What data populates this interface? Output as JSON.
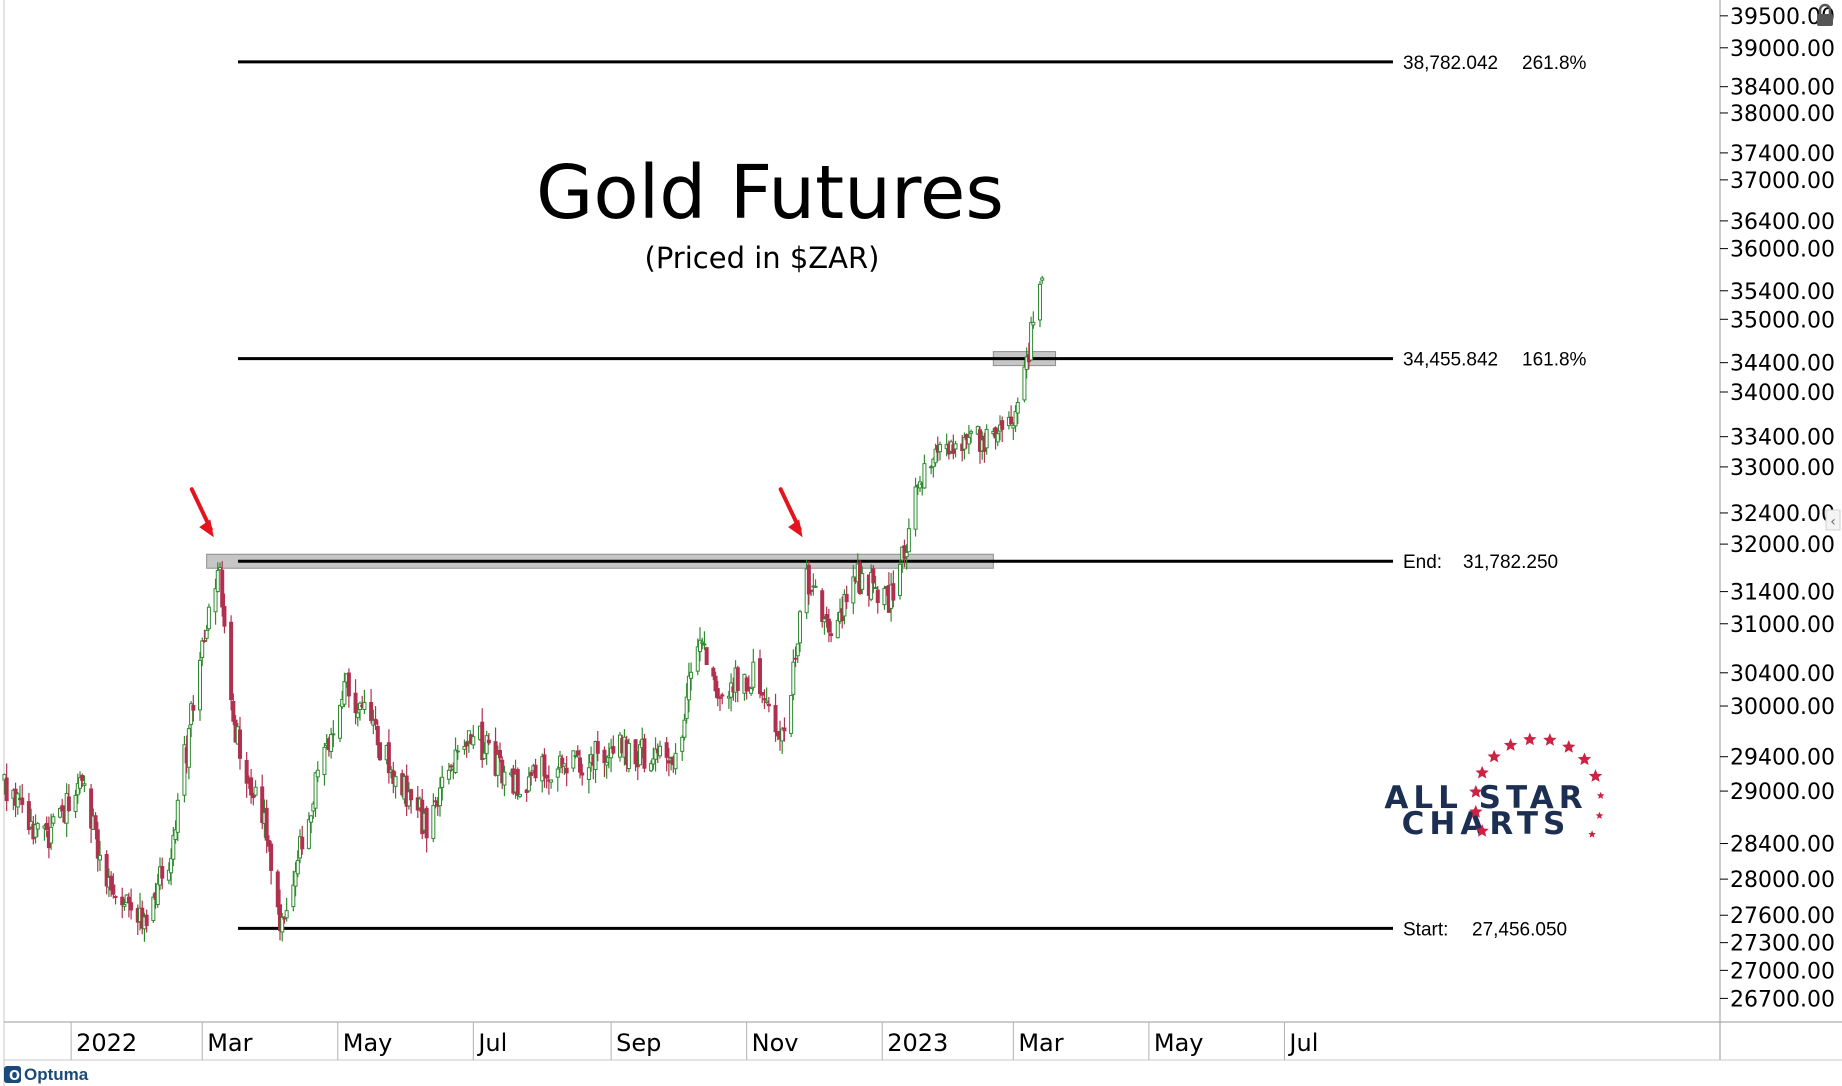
{
  "chart_data": {
    "type": "candlestick",
    "title": "Gold Futures",
    "subtitle": "(Priced in $ZAR)",
    "y_axis": {
      "ticks": [
        "39500.00",
        "39000.00",
        "38400.00",
        "38000.00",
        "37400.00",
        "37000.00",
        "36400.00",
        "36000.00",
        "35400.00",
        "35000.00",
        "34400.00",
        "34000.00",
        "33400.00",
        "33000.00",
        "32400.00",
        "32000.00",
        "31400.00",
        "31000.00",
        "30400.00",
        "30000.00",
        "29400.00",
        "29000.00",
        "28400.00",
        "28000.00",
        "27600.00",
        "27300.00",
        "27000.00",
        "26700.00"
      ],
      "range": [
        26450,
        39750
      ]
    },
    "x_axis": {
      "labels": [
        "2022",
        "Mar",
        "May",
        "Jul",
        "Sep",
        "Nov",
        "2023",
        "Mar",
        "May",
        "Jul"
      ]
    },
    "levels": [
      {
        "label": "",
        "value": 38782.042,
        "value_text": "38,782.042",
        "pct": "261.8%"
      },
      {
        "label": "",
        "value": 34455.842,
        "value_text": "34,455.842",
        "pct": "161.8%"
      },
      {
        "label": "End:",
        "value": 31782.25,
        "value_text": "31,782.250",
        "pct": ""
      },
      {
        "label": "Start:",
        "value": 27456.05,
        "value_text": "27,456.050",
        "pct": ""
      }
    ],
    "price_path": {
      "start_date": "2021-12-02",
      "end_date": "2023-03-14",
      "key_points": [
        [
          "2021-12-02",
          29100
        ],
        [
          "2021-12-20",
          28450
        ],
        [
          "2022-01-05",
          29100
        ],
        [
          "2022-01-18",
          28000
        ],
        [
          "2022-02-01",
          27500
        ],
        [
          "2022-02-14",
          28200
        ],
        [
          "2022-02-28",
          30500
        ],
        [
          "2022-03-08",
          31782
        ],
        [
          "2022-03-16",
          29700
        ],
        [
          "2022-03-31",
          28400
        ],
        [
          "2022-04-06",
          27456
        ],
        [
          "2022-04-20",
          29000
        ],
        [
          "2022-05-05",
          30300
        ],
        [
          "2022-05-20",
          29500
        ],
        [
          "2022-06-10",
          28600
        ],
        [
          "2022-06-30",
          29700
        ],
        [
          "2022-07-20",
          29100
        ],
        [
          "2022-08-10",
          29300
        ],
        [
          "2022-09-10",
          29500
        ],
        [
          "2022-10-01",
          29300
        ],
        [
          "2022-10-10",
          30900
        ],
        [
          "2022-10-20",
          30200
        ],
        [
          "2022-11-05",
          30400
        ],
        [
          "2022-11-18",
          29600
        ],
        [
          "2022-11-28",
          31600
        ],
        [
          "2022-12-08",
          30800
        ],
        [
          "2022-12-20",
          31600
        ],
        [
          "2023-01-05",
          31300
        ],
        [
          "2023-01-12",
          32000
        ],
        [
          "2023-01-20",
          33100
        ],
        [
          "2023-02-05",
          33400
        ],
        [
          "2023-02-20",
          33300
        ],
        [
          "2023-03-01",
          33700
        ],
        [
          "2023-03-08",
          34600
        ],
        [
          "2023-03-14",
          35600
        ]
      ]
    },
    "resistance_zones": [
      {
        "from": "2022-03-03",
        "to": "2023-02-20",
        "value": 31782.25
      },
      {
        "from": "2023-02-20",
        "to": "2023-03-20",
        "value": 34455.842
      }
    ],
    "arrows_at": [
      {
        "date": "2022-03-08",
        "value": 31782.25
      },
      {
        "date": "2022-11-28",
        "value": 31782.25
      }
    ],
    "colors": {
      "up": "#2e8b2e",
      "down": "#b03050",
      "levels": "#000000",
      "zone": "#bcbcbc",
      "arrow": "#e3141e"
    }
  },
  "branding": {
    "line1": "ALL STAR",
    "line2": "CHARTS",
    "star_color": "#cc2244",
    "text_color": "#1c2f52"
  },
  "footer": {
    "platform": "Optuma"
  }
}
